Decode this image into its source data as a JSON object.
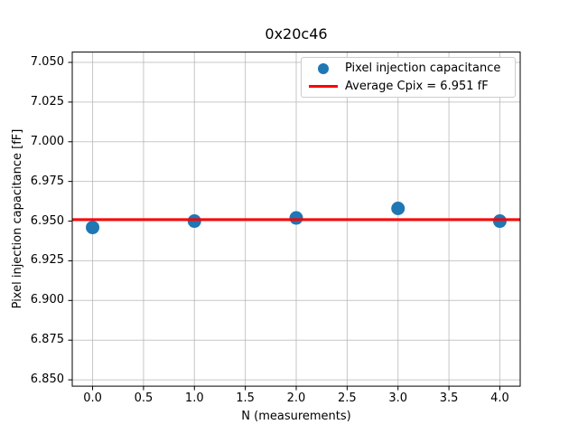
{
  "chart_data": {
    "type": "scatter",
    "title": "0x20c46",
    "xlabel": "N (measurements)",
    "ylabel": "Pixel injection capacitance [fF]",
    "x": [
      0,
      1,
      2,
      3,
      4
    ],
    "y": [
      6.946,
      6.95,
      6.952,
      6.958,
      6.95
    ],
    "series_label": "Pixel injection capacitance",
    "average_value": 6.951,
    "average_label": "Average Cpix = 6.951 fF",
    "xlim": [
      -0.2,
      4.2
    ],
    "ylim": [
      6.846,
      7.0565
    ],
    "xticks": [
      0.0,
      0.5,
      1.0,
      1.5,
      2.0,
      2.5,
      3.0,
      3.5,
      4.0
    ],
    "xtick_labels": [
      "0.0",
      "0.5",
      "1.0",
      "1.5",
      "2.0",
      "2.5",
      "3.0",
      "3.5",
      "4.0"
    ],
    "yticks": [
      6.85,
      6.875,
      6.9,
      6.925,
      6.95,
      6.975,
      7.0,
      7.025,
      7.05
    ],
    "ytick_labels": [
      "6.850",
      "6.875",
      "6.900",
      "6.925",
      "6.950",
      "6.975",
      "7.000",
      "7.025",
      "7.050"
    ],
    "grid": true,
    "legend_position": "upper right",
    "colors": {
      "marker": "#1f77b4",
      "average_line": "#ff0000",
      "grid": "#b0b0b0",
      "axis": "#000000",
      "legend_border": "#cccccc"
    }
  }
}
